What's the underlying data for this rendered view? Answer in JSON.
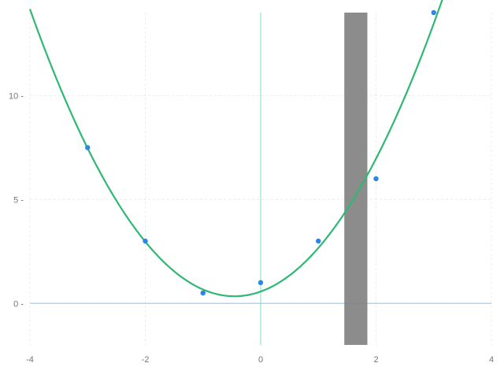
{
  "chart_data": {
    "type": "scatter",
    "title": "",
    "xlabel": "",
    "ylabel": "",
    "xlim": [
      -4,
      4
    ],
    "ylim": [
      -2,
      14
    ],
    "xticks": [
      -4,
      -2,
      0,
      2,
      4
    ],
    "yticks": [
      0,
      5,
      10
    ],
    "x_tick_labels": [
      "-4",
      "-2",
      "0",
      "2",
      "4"
    ],
    "y_tick_labels": [
      "0",
      "5",
      "10"
    ],
    "grid": true,
    "legend": "none",
    "points": {
      "x": [
        -3,
        -2,
        -1,
        0,
        1,
        2,
        3
      ],
      "y": [
        7.5,
        3.0,
        0.5,
        1.0,
        3.0,
        6.0,
        14.0
      ],
      "color": "#2b86e8"
    },
    "fit_curve": {
      "type": "quadratic",
      "coefficients": {
        "a": 1.1,
        "b": 1.0,
        "c": 0.57
      },
      "x_range": [
        -4,
        3.3
      ],
      "color": "#2fb872"
    },
    "reference_lines": {
      "horizontal_y": 0,
      "vertical_x": 0,
      "horizontal_color": "#9fd0f0",
      "vertical_color": "#7fdcc8"
    },
    "shaded_band": {
      "x_start": 1.45,
      "x_end": 1.85,
      "color": "#808080"
    }
  }
}
